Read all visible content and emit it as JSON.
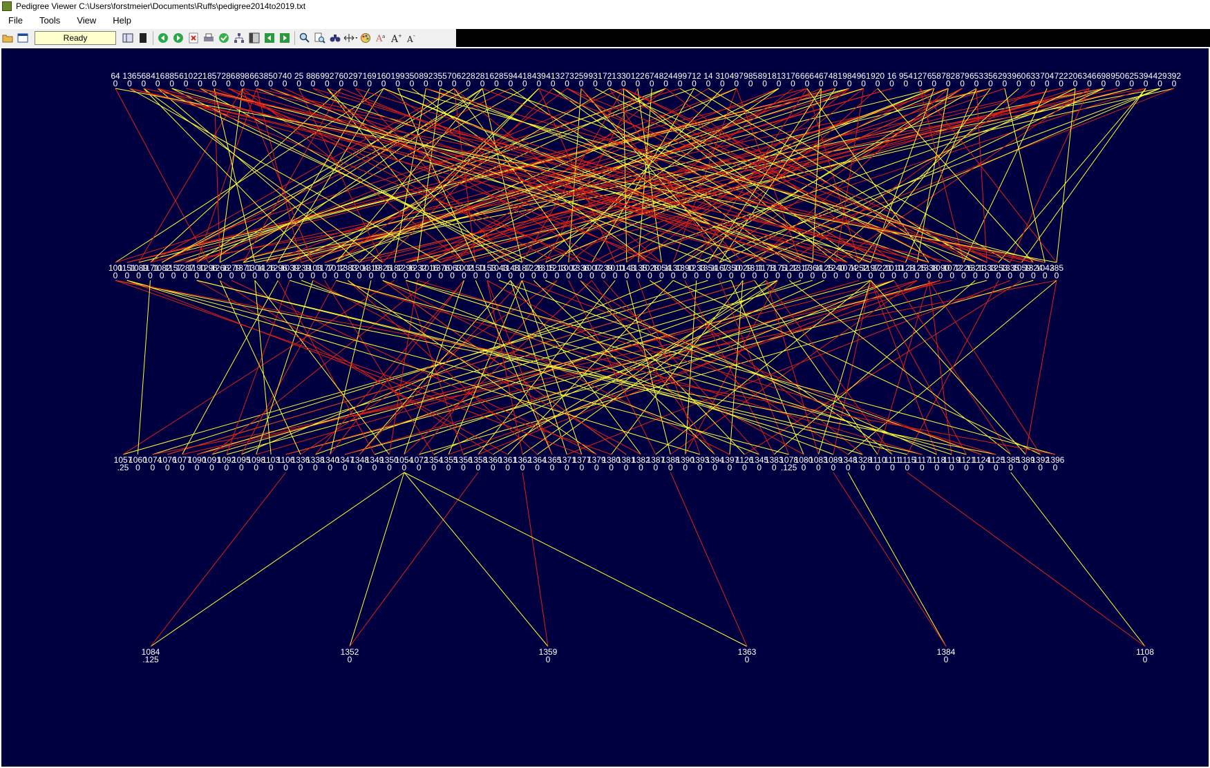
{
  "window": {
    "title": "Pedigree Viewer  C:\\Users\\forstmeier\\Documents\\Ruffs\\pedigree2014to2019.txt"
  },
  "menu": [
    "File",
    "Tools",
    "View",
    "Help"
  ],
  "toolbar": {
    "status": "Ready",
    "icons": [
      "open-folder-icon",
      "window-icon",
      "columns-icon",
      "film-icon",
      "back-icon",
      "forward-icon",
      "close-doc-icon",
      "print-icon",
      "check-icon",
      "tree-icon",
      "panel-icon",
      "prev-icon",
      "next-icon",
      "zoom-icon",
      "zoom-page-icon",
      "binoculars-icon",
      "resize-icon",
      "palette-icon",
      "font-color-icon",
      "font-bigger-icon",
      "font-smaller-icon"
    ]
  },
  "colors": {
    "background": "#000040",
    "sire_line": "#ffff33",
    "dam_line": "#e02010",
    "label": "#ffffff"
  },
  "pedigree": {
    "generation_4": [
      {
        "id": "1084",
        "f": ".125"
      },
      {
        "id": "1352",
        "f": "0"
      },
      {
        "id": "1359",
        "f": "0"
      },
      {
        "id": "1363",
        "f": "0"
      },
      {
        "id": "1384",
        "f": "0"
      },
      {
        "id": "1108",
        "f": "0"
      }
    ],
    "generation_3": [
      {
        "id": "1057",
        "f": ".25"
      },
      {
        "id": "1060",
        "f": "0"
      },
      {
        "id": "1074",
        "f": "0"
      },
      {
        "id": "1076",
        "f": "0"
      },
      {
        "id": "1077",
        "f": "0"
      },
      {
        "id": "1090",
        "f": "0"
      },
      {
        "id": "1091",
        "f": "0"
      },
      {
        "id": "1092",
        "f": "0"
      },
      {
        "id": "1095",
        "f": "0"
      },
      {
        "id": "1098",
        "f": "0"
      },
      {
        "id": "1103",
        "f": "0"
      },
      {
        "id": "1106",
        "f": "0"
      },
      {
        "id": "1336",
        "f": "0"
      },
      {
        "id": "1338",
        "f": "0"
      },
      {
        "id": "1340",
        "f": "0"
      },
      {
        "id": "1347",
        "f": "0"
      },
      {
        "id": "1348",
        "f": "0"
      },
      {
        "id": "1349",
        "f": "0"
      },
      {
        "id": "1350",
        "f": "0"
      },
      {
        "id": "1054",
        "f": "0"
      },
      {
        "id": "1072",
        "f": "0"
      },
      {
        "id": "1354",
        "f": "0"
      },
      {
        "id": "1355",
        "f": "0"
      },
      {
        "id": "1356",
        "f": "0"
      },
      {
        "id": "1358",
        "f": "0"
      },
      {
        "id": "1360",
        "f": "0"
      },
      {
        "id": "1361",
        "f": "0"
      },
      {
        "id": "1362",
        "f": "0"
      },
      {
        "id": "1364",
        "f": "0"
      },
      {
        "id": "1365",
        "f": "0"
      },
      {
        "id": "1371",
        "f": "0"
      },
      {
        "id": "1377",
        "f": "0"
      },
      {
        "id": "1379",
        "f": "0"
      },
      {
        "id": "1380",
        "f": "0"
      },
      {
        "id": "1381",
        "f": "0"
      },
      {
        "id": "1382",
        "f": "0"
      },
      {
        "id": "1387",
        "f": "0"
      },
      {
        "id": "1388",
        "f": "0"
      },
      {
        "id": "1390",
        "f": "0"
      },
      {
        "id": "1393",
        "f": "0"
      },
      {
        "id": "1394",
        "f": "0"
      },
      {
        "id": "1397",
        "f": "0"
      },
      {
        "id": "1126",
        "f": "0"
      },
      {
        "id": "1345",
        "f": "0"
      },
      {
        "id": "1383",
        "f": "0"
      },
      {
        "id": "1078",
        "f": ".125"
      },
      {
        "id": "1080",
        "f": "0"
      },
      {
        "id": "1083",
        "f": "0"
      },
      {
        "id": "1089",
        "f": "0"
      },
      {
        "id": "1348",
        "f": "0"
      },
      {
        "id": "1328",
        "f": "0"
      },
      {
        "id": "1110",
        "f": "0"
      },
      {
        "id": "1111",
        "f": "0"
      },
      {
        "id": "1115",
        "f": "0"
      },
      {
        "id": "1117",
        "f": "0"
      },
      {
        "id": "1118",
        "f": "0"
      },
      {
        "id": "1119",
        "f": "0"
      },
      {
        "id": "1121",
        "f": "0"
      },
      {
        "id": "1124",
        "f": "0"
      },
      {
        "id": "1125",
        "f": "0"
      },
      {
        "id": "1385",
        "f": "0"
      },
      {
        "id": "1389",
        "f": "0"
      },
      {
        "id": "1392",
        "f": "0"
      },
      {
        "id": "1396",
        "f": "0"
      }
    ],
    "generation_2_last": {
      "id": "385",
      "f": "0"
    },
    "generation_2_first": {
      "id": "100",
      "f": "0"
    },
    "generation_1_first": {
      "id": "64",
      "f": "0"
    },
    "generation_1_last": {
      "id": "392",
      "f": "0"
    }
  }
}
